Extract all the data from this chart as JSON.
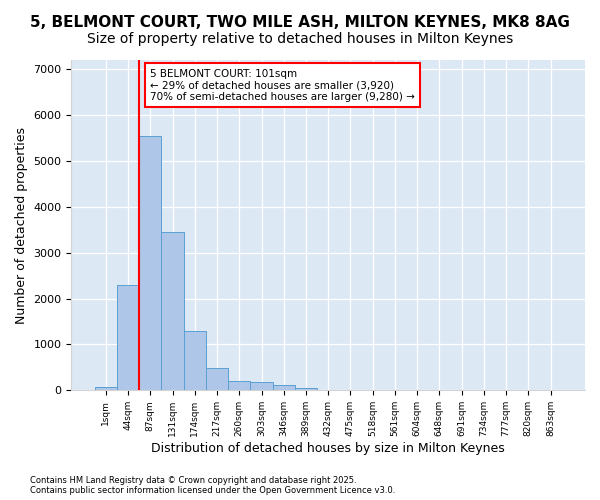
{
  "title1": "5, BELMONT COURT, TWO MILE ASH, MILTON KEYNES, MK8 8AG",
  "title2": "Size of property relative to detached houses in Milton Keynes",
  "xlabel": "Distribution of detached houses by size in Milton Keynes",
  "ylabel": "Number of detached properties",
  "bar_values": [
    70,
    2300,
    5550,
    3450,
    1300,
    490,
    210,
    190,
    110,
    60,
    0,
    0,
    0,
    0,
    0,
    0,
    0,
    0,
    0,
    0,
    0
  ],
  "categories": [
    "1sqm",
    "44sqm",
    "87sqm",
    "131sqm",
    "174sqm",
    "217sqm",
    "260sqm",
    "303sqm",
    "346sqm",
    "389sqm",
    "432sqm",
    "475sqm",
    "518sqm",
    "561sqm",
    "604sqm",
    "648sqm",
    "691sqm",
    "734sqm",
    "777sqm",
    "820sqm",
    "863sqm"
  ],
  "bar_color": "#aec6e8",
  "bar_edge_color": "#5a9fd4",
  "vline_x_index": 2,
  "vline_color": "red",
  "annotation_text": "5 BELMONT COURT: 101sqm\n← 29% of detached houses are smaller (3,920)\n70% of semi-detached houses are larger (9,280) →",
  "annotation_box_color": "white",
  "annotation_box_edge": "red",
  "ylim": [
    0,
    7200
  ],
  "yticks": [
    0,
    1000,
    2000,
    3000,
    4000,
    5000,
    6000,
    7000
  ],
  "bg_color": "#dde8f5",
  "footer_text": "Contains HM Land Registry data © Crown copyright and database right 2025.\nContains public sector information licensed under the Open Government Licence v3.0.",
  "title_fontsize": 11,
  "subtitle_fontsize": 10,
  "xlabel_fontsize": 9,
  "ylabel_fontsize": 9
}
